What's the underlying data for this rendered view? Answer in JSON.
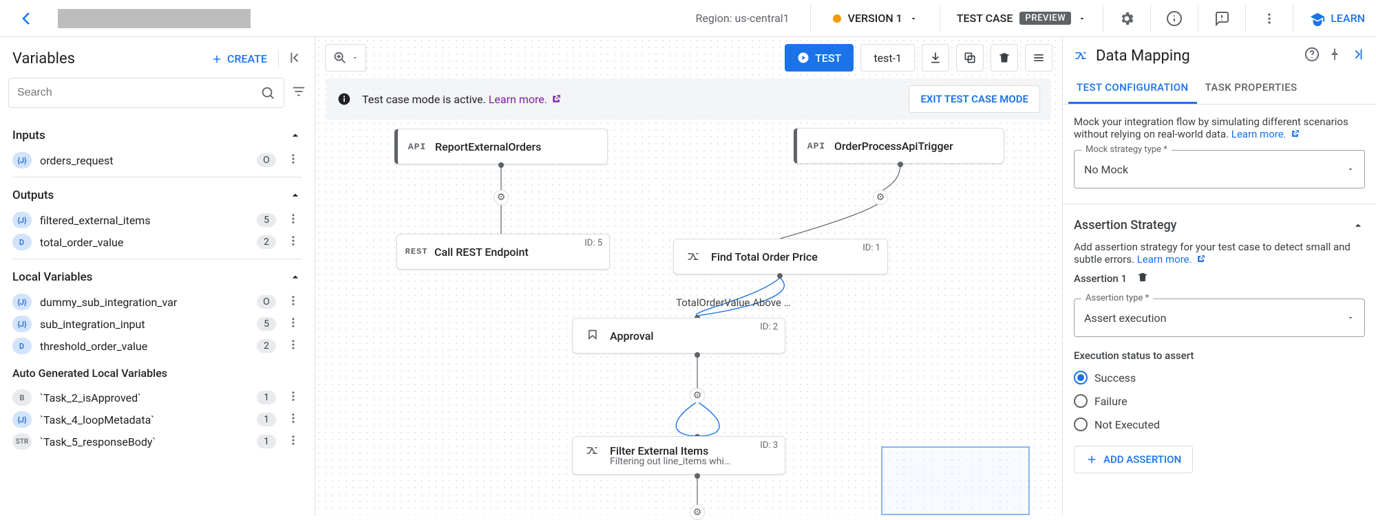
{
  "topbar": {
    "region": "Region: us-central1",
    "version": "VERSION 1",
    "test_case_label": "TEST CASE",
    "preview": "PREVIEW",
    "learn": "LEARN"
  },
  "left": {
    "title": "Variables",
    "create": "CREATE",
    "search_placeholder": "Search",
    "inputs_label": "Inputs",
    "outputs_label": "Outputs",
    "locals_label": "Local Variables",
    "auto_label": "Auto Generated Local Variables",
    "inputs": [
      {
        "type": "{J}",
        "cls": "vt-j",
        "name": "orders_request",
        "badge": "O"
      }
    ],
    "outputs": [
      {
        "type": "{J}",
        "cls": "vt-j",
        "name": "filtered_external_items",
        "badge": "5"
      },
      {
        "type": "D",
        "cls": "vt-d",
        "name": "total_order_value",
        "badge": "2"
      }
    ],
    "locals": [
      {
        "type": "{J}",
        "cls": "vt-j",
        "name": "dummy_sub_integration_var",
        "badge": "O"
      },
      {
        "type": "{J}",
        "cls": "vt-j",
        "name": "sub_integration_input",
        "badge": "5"
      },
      {
        "type": "D",
        "cls": "vt-d",
        "name": "threshold_order_value",
        "badge": "2"
      }
    ],
    "auto": [
      {
        "type": "B",
        "cls": "vt-b",
        "name": "`Task_2_isApproved`",
        "badge": "1"
      },
      {
        "type": "{J}",
        "cls": "vt-j",
        "name": "`Task_4_loopMetadata`",
        "badge": "1"
      },
      {
        "type": "STR",
        "cls": "vt-s",
        "name": "`Task_5_responseBody`",
        "badge": "1"
      }
    ]
  },
  "canvas": {
    "banner_text": "Test case mode is active. ",
    "banner_link": "Learn more.",
    "exit": "EXIT TEST CASE MODE",
    "test_btn": "TEST",
    "test_name": "test-1",
    "nodes": {
      "n1": {
        "title": "ReportExternalOrders",
        "icon": "API"
      },
      "n2": {
        "title": "OrderProcessApiTrigger",
        "icon": "API"
      },
      "n3": {
        "title": "Call REST Endpoint",
        "icon": "REST",
        "id": "ID: 5"
      },
      "n4": {
        "title": "Find Total Order Price",
        "id": "ID: 1"
      },
      "n5": {
        "title": "Approval",
        "id": "ID: 2"
      },
      "n6": {
        "title": "Filter External Items",
        "sub": "Filtering out line_items whi…",
        "id": "ID: 3"
      }
    },
    "edge_label": "TotalOrderValue Above …"
  },
  "right": {
    "title": "Data Mapping",
    "tab1": "TEST CONFIGURATION",
    "tab2": "TASK PROPERTIES",
    "mock_desc": "Mock your integration flow by simulating different scenarios without relying on real-world data. ",
    "learn_more": "Learn more.",
    "mock_label": "Mock strategy type *",
    "mock_value": "No Mock",
    "assert_head": "Assertion Strategy",
    "assert_desc": "Add assertion strategy for your test case to detect small and subtle errors. ",
    "assertion1": "Assertion 1",
    "assert_type_label": "Assertion type *",
    "assert_type_value": "Assert execution",
    "exec_status_label": "Execution status to assert",
    "opt_success": "Success",
    "opt_failure": "Failure",
    "opt_notexec": "Not Executed",
    "add_assertion": "ADD ASSERTION"
  }
}
